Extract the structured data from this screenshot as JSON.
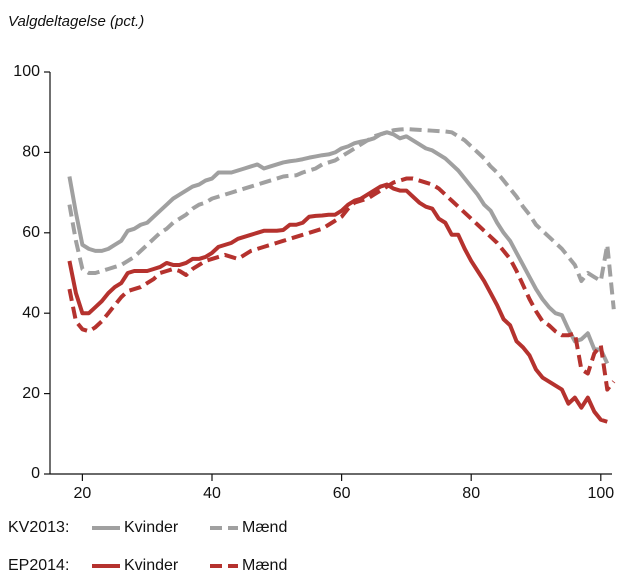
{
  "chart_data": {
    "type": "line",
    "title": "Valgdeltagelse (pct.)",
    "x": [
      18,
      19,
      20,
      21,
      22,
      23,
      24,
      25,
      26,
      27,
      28,
      29,
      30,
      31,
      32,
      33,
      34,
      35,
      36,
      37,
      38,
      39,
      40,
      41,
      42,
      43,
      44,
      45,
      46,
      47,
      48,
      49,
      50,
      51,
      52,
      53,
      54,
      55,
      56,
      57,
      58,
      59,
      60,
      61,
      62,
      63,
      64,
      65,
      66,
      67,
      68,
      69,
      70,
      71,
      72,
      73,
      74,
      75,
      76,
      77,
      78,
      79,
      80,
      81,
      82,
      83,
      84,
      85,
      86,
      87,
      88,
      89,
      90,
      91,
      92,
      93,
      94,
      95,
      96,
      97,
      98,
      99,
      100,
      101,
      102
    ],
    "xlim": [
      15,
      102.5
    ],
    "xticks": [
      20,
      40,
      60,
      80,
      100
    ],
    "ylim": [
      0,
      100
    ],
    "yticks": [
      0,
      20,
      40,
      60,
      80,
      100
    ],
    "groups": [
      {
        "label": "KV2013:",
        "series": [
          {
            "name": "Kvinder",
            "color": "#a0a0a0",
            "dashed": false,
            "values": [
              74,
              65,
              57,
              56,
              55.5,
              55.5,
              56,
              57,
              58,
              60.5,
              61,
              62,
              62.5,
              64,
              65.5,
              67,
              68.5,
              69.5,
              70.5,
              71.5,
              72,
              73,
              73.5,
              75,
              75,
              75,
              75.5,
              76,
              76.5,
              77,
              76,
              76.5,
              77,
              77.5,
              77.8,
              78,
              78.3,
              78.7,
              79,
              79.3,
              79.5,
              80,
              81,
              81.5,
              82.3,
              82.7,
              83,
              83.5,
              84.5,
              85,
              84.5,
              83.5,
              84,
              83,
              82,
              81,
              80.5,
              79.5,
              78.5,
              77,
              75.5,
              73.5,
              71.5,
              69.5,
              67,
              65.5,
              62.5,
              60,
              58,
              55,
              52,
              49,
              46,
              43.5,
              41.5,
              40,
              39.5,
              36,
              33,
              33.5,
              35,
              31,
              31,
              27.5,
              null
            ]
          },
          {
            "name": "Mænd",
            "color": "#a0a0a0",
            "dashed": true,
            "values": [
              67,
              58,
              51,
              50,
              50,
              50.5,
              51,
              51.5,
              52,
              53,
              54,
              55.5,
              57,
              58.5,
              60,
              61,
              62.5,
              63.5,
              64.5,
              66,
              67,
              67.5,
              68.5,
              69,
              69.5,
              70,
              70.5,
              71,
              71.5,
              72,
              72.5,
              73,
              73.5,
              74,
              74.2,
              74.3,
              75,
              75.5,
              76,
              77,
              77.5,
              78,
              79,
              80,
              81,
              82,
              83,
              84,
              84.5,
              85,
              85.5,
              85.7,
              85.8,
              85.7,
              85.6,
              85.5,
              85.4,
              85.3,
              85.2,
              85,
              84,
              83,
              81.5,
              80,
              78.5,
              76.5,
              75,
              73,
              71,
              69,
              66.5,
              64.5,
              62,
              60.5,
              59,
              57.5,
              56,
              54,
              52,
              48,
              50,
              49,
              48,
              57,
              41
            ]
          }
        ]
      },
      {
        "label": "EP2014:",
        "series": [
          {
            "name": "Kvinder",
            "color": "#b5322e",
            "dashed": false,
            "values": [
              53,
              45,
              40,
              40,
              41.5,
              43,
              45,
              46.5,
              47.5,
              50,
              50.5,
              50.5,
              50.5,
              51,
              51.5,
              52.5,
              52,
              52,
              52.5,
              53.5,
              53.5,
              54,
              55,
              56.5,
              57,
              57.5,
              58.5,
              59,
              59.5,
              60,
              60.5,
              60.5,
              60.5,
              60.7,
              62,
              62,
              62.5,
              64,
              64.2,
              64.3,
              64.5,
              64.5,
              65.5,
              67,
              68,
              68.5,
              69.5,
              70.5,
              71.5,
              72,
              71,
              70.5,
              70.5,
              69,
              67.5,
              66.5,
              66,
              63.5,
              62.5,
              59.5,
              59.5,
              56,
              53,
              50.5,
              48,
              45,
              42,
              38.5,
              37,
              33,
              31.5,
              29.5,
              26,
              24,
              23,
              22,
              21,
              17.5,
              19,
              16.5,
              19,
              15.5,
              13.5,
              13,
              null
            ]
          },
          {
            "name": "Mænd",
            "color": "#b5322e",
            "dashed": true,
            "values": [
              46,
              38,
              36,
              35.5,
              36.5,
              38,
              40,
              42,
              44,
              45.5,
              46,
              46.5,
              47.5,
              48.5,
              50,
              50.5,
              51,
              50.5,
              49.5,
              51,
              52,
              53,
              53.5,
              54,
              54.5,
              54,
              53.5,
              54.5,
              55.5,
              56,
              56.5,
              57,
              57.5,
              58,
              58.5,
              59,
              59.5,
              60,
              60.5,
              61,
              62,
              63,
              64,
              66,
              67.5,
              68,
              68.5,
              69.5,
              70.5,
              71.5,
              72.5,
              73,
              73.5,
              73.5,
              73,
              72.5,
              72,
              71,
              69.5,
              68,
              66.5,
              65,
              63.5,
              62,
              60.5,
              59,
              57.5,
              55.5,
              53.5,
              50.5,
              47,
              43.5,
              40.5,
              38,
              37,
              35.5,
              34.5,
              34.5,
              35,
              26,
              25,
              30,
              32,
              21,
              23
            ]
          }
        ]
      }
    ]
  }
}
